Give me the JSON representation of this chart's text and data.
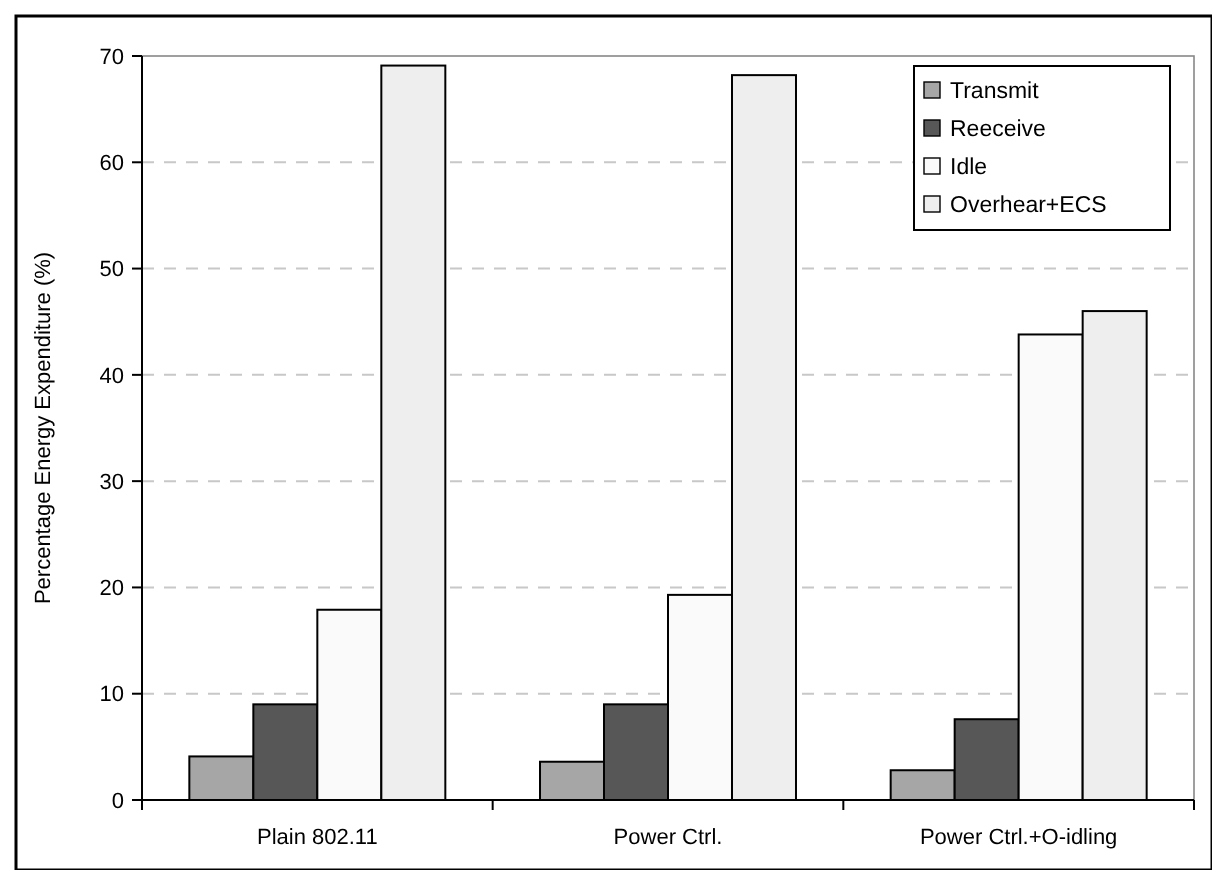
{
  "chart_data": {
    "type": "bar",
    "ylabel": "Percentage Energy Expenditure (%)",
    "categories": [
      "Plain 802.11",
      "Power Ctrl.",
      "Power Ctrl.+O-idling"
    ],
    "series": [
      {
        "name": "Transmit",
        "color": "#a6a6a6",
        "values": [
          4.1,
          3.6,
          2.8
        ]
      },
      {
        "name": "Reeceive",
        "color": "#575757",
        "values": [
          9.0,
          9.0,
          7.6
        ]
      },
      {
        "name": "Idle",
        "color": "#fafafa",
        "values": [
          17.9,
          19.3,
          43.8
        ]
      },
      {
        "name": "Overhear+ECS",
        "color": "#eeeeee",
        "values": [
          69.1,
          68.2,
          46.0
        ]
      }
    ],
    "ylim": [
      0,
      70
    ],
    "yticks": [
      0,
      10,
      20,
      30,
      40,
      50,
      60,
      70
    ],
    "grid": "y",
    "legend": "top right"
  }
}
